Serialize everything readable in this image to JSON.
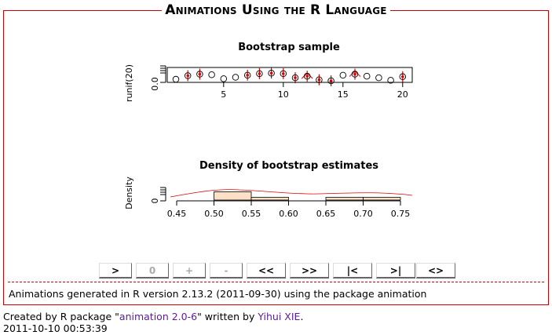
{
  "header": {
    "title": "Animations Using the R Language"
  },
  "plot1": {
    "title": "Bootstrap sample",
    "ylabel": "runif(20)",
    "ytick": "0.0",
    "xticks": [
      "5",
      "10",
      "15",
      "20"
    ]
  },
  "plot2": {
    "title": "Density of bootstrap estimates",
    "ylabel": "Density",
    "ytick": "0",
    "xticks": [
      "0.45",
      "0.50",
      "0.55",
      "0.60",
      "0.65",
      "0.70",
      "0.75"
    ]
  },
  "controls": {
    "play": ">",
    "counter": "0",
    "faster": "+",
    "slower": "-",
    "prev": "<<",
    "next": ">>",
    "first": "|<",
    "last": ">|",
    "loop": "<>"
  },
  "footer": {
    "text": "Animations generated in R version 2.13.2 (2011-09-30) using the package animation"
  },
  "credit": {
    "prefix": "Created by R package \"",
    "package_link": "animation 2.0-6",
    "middle": "\" written by ",
    "author_link": "Yihui XIE",
    "suffix": ".",
    "timestamp": "2011-10-10 00:53:39"
  },
  "colors": {
    "accent": "#cc0000",
    "link": "#5a1a99",
    "hist_fill": "#fde0c5"
  },
  "chart_data": [
    {
      "type": "scatter",
      "title": "Bootstrap sample",
      "ylabel": "runif(20)",
      "xlim": [
        1,
        20
      ],
      "points": [
        {
          "x": 1,
          "y": 0.15,
          "sel": 0
        },
        {
          "x": 2,
          "y": 0.5,
          "sel": 1
        },
        {
          "x": 3,
          "y": 0.65,
          "sel": 1
        },
        {
          "x": 4,
          "y": 0.6,
          "sel": 0
        },
        {
          "x": 5,
          "y": 0.2,
          "sel": 0
        },
        {
          "x": 6,
          "y": 0.35,
          "sel": 0
        },
        {
          "x": 7,
          "y": 0.55,
          "sel": 1
        },
        {
          "x": 8,
          "y": 0.7,
          "sel": 1
        },
        {
          "x": 9,
          "y": 0.75,
          "sel": 1
        },
        {
          "x": 10,
          "y": 0.7,
          "sel": 1
        },
        {
          "x": 11,
          "y": 0.3,
          "sel": 1
        },
        {
          "x": 12,
          "y": 0.45,
          "sel": 2
        },
        {
          "x": 13,
          "y": 0.1,
          "sel": 1
        },
        {
          "x": 14,
          "y": 0.0,
          "sel": 1
        },
        {
          "x": 15,
          "y": 0.55,
          "sel": 0
        },
        {
          "x": 16,
          "y": 0.65,
          "sel": 2
        },
        {
          "x": 17,
          "y": 0.45,
          "sel": 0
        },
        {
          "x": 18,
          "y": 0.3,
          "sel": 0
        },
        {
          "x": 19,
          "y": 0.05,
          "sel": 0
        },
        {
          "x": 20,
          "y": 0.4,
          "sel": 1
        }
      ]
    },
    {
      "type": "bar",
      "title": "Density of bootstrap estimates",
      "ylabel": "Density",
      "xlim": [
        0.45,
        0.75
      ],
      "bins": [
        {
          "from": 0.5,
          "to": 0.55,
          "density": 3
        },
        {
          "from": 0.55,
          "to": 0.6,
          "density": 1
        },
        {
          "from": 0.6,
          "to": 0.65,
          "density": 0
        },
        {
          "from": 0.65,
          "to": 0.7,
          "density": 1
        },
        {
          "from": 0.7,
          "to": 0.75,
          "density": 1
        }
      ]
    }
  ]
}
